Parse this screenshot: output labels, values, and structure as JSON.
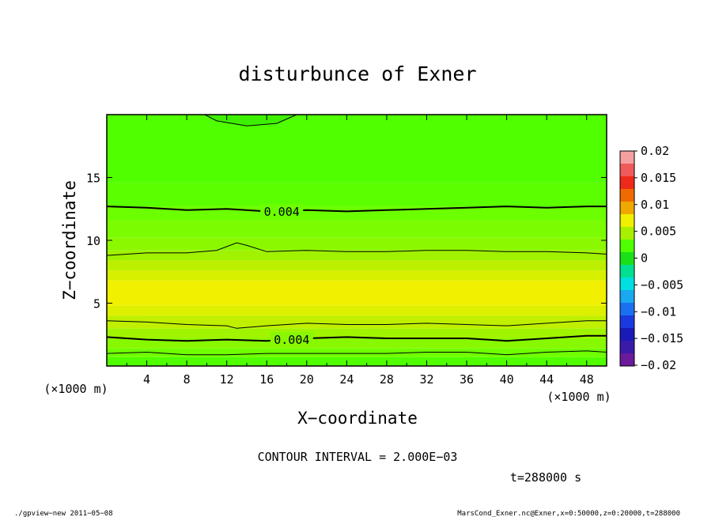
{
  "chart_data": {
    "type": "heatmap",
    "title": "disturbunce of Exner",
    "xlabel": "X−coordinate",
    "ylabel": "Z−coordinate",
    "x_unit": "(×1000 m)",
    "y_unit": "(×1000 m)",
    "xlim": [
      0,
      50
    ],
    "ylim": [
      0,
      20
    ],
    "x_ticks": [
      4,
      8,
      12,
      16,
      20,
      24,
      28,
      32,
      36,
      40,
      44,
      48
    ],
    "y_ticks": [
      5,
      10,
      15
    ],
    "colorbar": {
      "ticks": [
        0.02,
        0.015,
        0.01,
        0.005,
        0,
        -0.005,
        -0.01,
        -0.015,
        -0.02
      ],
      "tick_labels": [
        "0.02",
        "0.015",
        "0.01",
        "0.005",
        "0",
        "−0.005",
        "−0.01",
        "−0.015",
        "−0.02"
      ],
      "range": [
        -0.02,
        0.02
      ],
      "levels": [
        {
          "from": -0.02,
          "to": -0.0175,
          "color": "#6a1a9a"
        },
        {
          "from": -0.0175,
          "to": -0.015,
          "color": "#3a1aa8"
        },
        {
          "from": -0.015,
          "to": -0.0125,
          "color": "#1a1ab8"
        },
        {
          "from": -0.0125,
          "to": -0.01,
          "color": "#1a3ae0"
        },
        {
          "from": -0.01,
          "to": -0.0075,
          "color": "#1a70f0"
        },
        {
          "from": -0.0075,
          "to": -0.005,
          "color": "#1aa8f0"
        },
        {
          "from": -0.005,
          "to": -0.0025,
          "color": "#00e0e0"
        },
        {
          "from": -0.0025,
          "to": 0,
          "color": "#00e090"
        },
        {
          "from": 0,
          "to": 0.0025,
          "color": "#1ae01a"
        },
        {
          "from": 0.0025,
          "to": 0.005,
          "color": "#50ff00"
        },
        {
          "from": 0.005,
          "to": 0.0075,
          "color": "#a8f000"
        },
        {
          "from": 0.0075,
          "to": 0.01,
          "color": "#f0f000"
        },
        {
          "from": 0.01,
          "to": 0.0125,
          "color": "#f0a800"
        },
        {
          "from": 0.0125,
          "to": 0.015,
          "color": "#f06a00"
        },
        {
          "from": 0.015,
          "to": 0.0175,
          "color": "#f02a1a"
        },
        {
          "from": 0.0175,
          "to": 0.02,
          "color": "#f05a5a"
        },
        {
          "from": 0.02,
          "to": 0.0225,
          "color": "#f5a0a0"
        }
      ]
    },
    "field_bands": [
      {
        "z_from": 0,
        "z_to": 0.7,
        "color": "#50ff00",
        "value": 0.0035
      },
      {
        "z_from": 0.7,
        "z_to": 1.4,
        "color": "#6fff00",
        "value": 0.004
      },
      {
        "z_from": 1.4,
        "z_to": 2.2,
        "color": "#88f800",
        "value": 0.0045
      },
      {
        "z_from": 2.2,
        "z_to": 3.0,
        "color": "#a0f400",
        "value": 0.005
      },
      {
        "z_from": 3.0,
        "z_to": 4.0,
        "color": "#c0f000",
        "value": 0.0055
      },
      {
        "z_from": 4.0,
        "z_to": 4.8,
        "color": "#dcf000",
        "value": 0.006
      },
      {
        "z_from": 4.8,
        "z_to": 6.8,
        "color": "#f0f000",
        "value": 0.0065
      },
      {
        "z_from": 6.8,
        "z_to": 7.6,
        "color": "#d6f000",
        "value": 0.006
      },
      {
        "z_from": 7.6,
        "z_to": 8.4,
        "color": "#bcf000",
        "value": 0.0055
      },
      {
        "z_from": 8.4,
        "z_to": 9.2,
        "color": "#a0f200",
        "value": 0.005
      },
      {
        "z_from": 9.2,
        "z_to": 10.2,
        "color": "#8cf800",
        "value": 0.0047
      },
      {
        "z_from": 10.2,
        "z_to": 11.6,
        "color": "#7cfc00",
        "value": 0.0044
      },
      {
        "z_from": 11.6,
        "z_to": 12.7,
        "color": "#6cff00",
        "value": 0.0041
      },
      {
        "z_from": 12.7,
        "z_to": 14.6,
        "color": "#5cff00",
        "value": 0.0038
      },
      {
        "z_from": 14.6,
        "z_to": 20,
        "color": "#50ff00",
        "value": 0.0033
      }
    ],
    "contours": [
      {
        "value": 0.004,
        "label": "0.004",
        "label_x": 17.5,
        "bold": true,
        "points": [
          [
            0,
            12.7
          ],
          [
            4,
            12.6
          ],
          [
            8,
            12.4
          ],
          [
            12,
            12.5
          ],
          [
            16,
            12.3
          ],
          [
            20,
            12.4
          ],
          [
            24,
            12.3
          ],
          [
            28,
            12.4
          ],
          [
            32,
            12.5
          ],
          [
            36,
            12.6
          ],
          [
            40,
            12.7
          ],
          [
            44,
            12.6
          ],
          [
            48,
            12.7
          ],
          [
            50,
            12.7
          ]
        ]
      },
      {
        "value": 0.005,
        "label": "",
        "bold": false,
        "points": [
          [
            0,
            8.8
          ],
          [
            4,
            9.0
          ],
          [
            8,
            9.0
          ],
          [
            11,
            9.2
          ],
          [
            13,
            9.8
          ],
          [
            14,
            9.6
          ],
          [
            16,
            9.1
          ],
          [
            20,
            9.2
          ],
          [
            24,
            9.1
          ],
          [
            28,
            9.1
          ],
          [
            32,
            9.2
          ],
          [
            36,
            9.2
          ],
          [
            40,
            9.1
          ],
          [
            44,
            9.1
          ],
          [
            48,
            9.0
          ],
          [
            50,
            8.9
          ]
        ]
      },
      {
        "value": 0.005,
        "label": "",
        "bold": false,
        "points": [
          [
            0,
            3.6
          ],
          [
            4,
            3.5
          ],
          [
            8,
            3.3
          ],
          [
            12,
            3.2
          ],
          [
            13,
            3.0
          ],
          [
            16,
            3.2
          ],
          [
            20,
            3.4
          ],
          [
            24,
            3.3
          ],
          [
            28,
            3.3
          ],
          [
            32,
            3.4
          ],
          [
            36,
            3.3
          ],
          [
            40,
            3.2
          ],
          [
            44,
            3.4
          ],
          [
            48,
            3.6
          ],
          [
            50,
            3.6
          ]
        ]
      },
      {
        "value": 0.004,
        "label": "0.004",
        "label_x": 18.5,
        "bold": true,
        "points": [
          [
            0,
            2.3
          ],
          [
            4,
            2.1
          ],
          [
            8,
            2.0
          ],
          [
            12,
            2.1
          ],
          [
            16,
            2.0
          ],
          [
            20,
            2.2
          ],
          [
            24,
            2.3
          ],
          [
            28,
            2.2
          ],
          [
            32,
            2.2
          ],
          [
            36,
            2.2
          ],
          [
            40,
            2.0
          ],
          [
            44,
            2.2
          ],
          [
            48,
            2.4
          ],
          [
            50,
            2.4
          ]
        ]
      },
      {
        "value": 0.0035,
        "label": "",
        "bold": false,
        "points": [
          [
            0,
            1.0
          ],
          [
            4,
            1.1
          ],
          [
            8,
            0.9
          ],
          [
            12,
            0.9
          ],
          [
            16,
            1.0
          ],
          [
            20,
            1.0
          ],
          [
            24,
            1.0
          ],
          [
            28,
            1.0
          ],
          [
            32,
            1.1
          ],
          [
            36,
            1.1
          ],
          [
            40,
            0.9
          ],
          [
            44,
            1.1
          ],
          [
            48,
            1.2
          ],
          [
            50,
            1.1
          ]
        ]
      },
      {
        "value": 0.003,
        "label": "",
        "bold": false,
        "points": [
          [
            9.8,
            20
          ],
          [
            11,
            19.5
          ],
          [
            14,
            19.1
          ],
          [
            17,
            19.3
          ],
          [
            19,
            20
          ]
        ]
      }
    ],
    "cap_region": {
      "points": [
        [
          9.8,
          20
        ],
        [
          11,
          19.5
        ],
        [
          14,
          19.1
        ],
        [
          17,
          19.3
        ],
        [
          19,
          20
        ]
      ],
      "color": "#3cf000"
    },
    "grid": false,
    "legend": "colorbar-right"
  },
  "annotations": {
    "contour_interval": "CONTOUR INTERVAL = 2.000E−03",
    "time": "t=288000 s",
    "footer_left": "./gpview−new   2011−05−08",
    "footer_right": "MarsCond_Exner.nc@Exner,x=0:50000,z=0:20000,t=288000"
  }
}
